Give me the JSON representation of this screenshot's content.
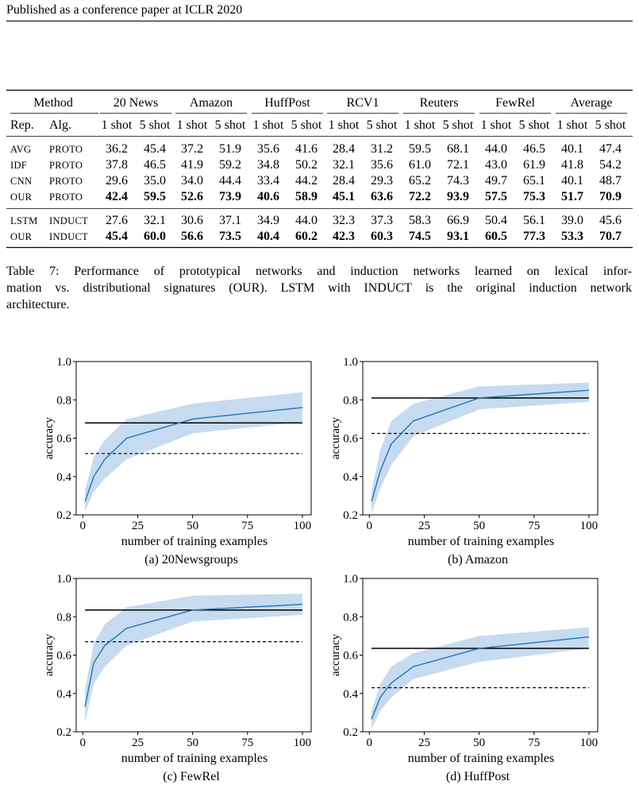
{
  "header": {
    "text": "Published as a conference paper at ICLR 2020"
  },
  "table": {
    "col_method": "Method",
    "col_rep": "Rep.",
    "col_alg": "Alg.",
    "datasets": [
      "20 News",
      "Amazon",
      "HuffPost",
      "RCV1",
      "Reuters",
      "FewRel",
      "Average"
    ],
    "shot_labels": [
      "1 shot",
      "5 shot"
    ],
    "group1": [
      {
        "rep": "AVG",
        "alg": "PROTO",
        "values": [
          "36.2",
          "45.4",
          "37.2",
          "51.9",
          "35.6",
          "41.6",
          "28.4",
          "31.2",
          "59.5",
          "68.1",
          "44.0",
          "46.5",
          "40.1",
          "47.4"
        ],
        "bold": false
      },
      {
        "rep": "IDF",
        "alg": "PROTO",
        "values": [
          "37.8",
          "46.5",
          "41.9",
          "59.2",
          "34.8",
          "50.2",
          "32.1",
          "35.6",
          "61.0",
          "72.1",
          "43.0",
          "61.9",
          "41.8",
          "54.2"
        ],
        "bold": false
      },
      {
        "rep": "CNN",
        "alg": "PROTO",
        "values": [
          "29.6",
          "35.0",
          "34.0",
          "44.4",
          "33.4",
          "44.2",
          "28.4",
          "29.3",
          "65.2",
          "74.3",
          "49.7",
          "65.1",
          "40.1",
          "48.7"
        ],
        "bold": false
      },
      {
        "rep": "OUR",
        "alg": "PROTO",
        "values": [
          "42.4",
          "59.5",
          "52.6",
          "73.9",
          "40.6",
          "58.9",
          "45.1",
          "63.6",
          "72.2",
          "93.9",
          "57.5",
          "75.3",
          "51.7",
          "70.9"
        ],
        "bold": true
      }
    ],
    "group2": [
      {
        "rep": "LSTM",
        "alg": "INDUCT",
        "values": [
          "27.6",
          "32.1",
          "30.6",
          "37.1",
          "34.9",
          "44.0",
          "32.3",
          "37.3",
          "58.3",
          "66.9",
          "50.4",
          "56.1",
          "39.0",
          "45.6"
        ],
        "bold": false
      },
      {
        "rep": "OUR",
        "alg": "INDUCT",
        "values": [
          "45.4",
          "60.0",
          "56.6",
          "73.5",
          "40.4",
          "60.2",
          "42.3",
          "60.3",
          "74.5",
          "93.1",
          "60.5",
          "77.3",
          "53.3",
          "70.7"
        ],
        "bold": true
      }
    ]
  },
  "caption": {
    "label": "Table 7:",
    "line1": "Performance of prototypical networks and induction networks learned on lexical infor-",
    "line2_a": "mation vs. distributional signatures (",
    "line2_our": "OUR",
    "line2_b": ").",
    "line2_lstm": "LSTM",
    "line2_c": " with ",
    "line2_induct": "INDUCT",
    "line2_d": " is the original induction network",
    "line3": "architecture."
  },
  "figure": {
    "ylabel": "accuracy",
    "xlabel": "number of training examples",
    "x_ticks": [
      "0",
      "25",
      "50",
      "75",
      "100"
    ],
    "y_ticks": [
      "0.2",
      "0.4",
      "0.6",
      "0.8",
      "1.0"
    ]
  },
  "chart_data": [
    {
      "type": "line",
      "caption": "(a) 20Newsgroups",
      "xlabel": "number of training examples",
      "ylabel": "accuracy",
      "xlim": [
        -3,
        104
      ],
      "ylim": [
        0.2,
        1.0
      ],
      "grid": false,
      "x": [
        1,
        5,
        10,
        20,
        50,
        100
      ],
      "mean": [
        0.27,
        0.4,
        0.49,
        0.6,
        0.7,
        0.76
      ],
      "lower": [
        0.22,
        0.32,
        0.39,
        0.49,
        0.625,
        0.685
      ],
      "upper": [
        0.33,
        0.5,
        0.59,
        0.7,
        0.78,
        0.84
      ],
      "solid_line": 0.68,
      "dashed_line": 0.52,
      "colors": {
        "line": "#1f77b4",
        "band": "#c6dbef",
        "ref": "#000000"
      }
    },
    {
      "type": "line",
      "caption": "(b) Amazon",
      "xlabel": "number of training examples",
      "ylabel": "accuracy",
      "xlim": [
        -3,
        104
      ],
      "ylim": [
        0.2,
        1.0
      ],
      "grid": false,
      "x": [
        1,
        5,
        10,
        20,
        50,
        100
      ],
      "mean": [
        0.27,
        0.43,
        0.57,
        0.69,
        0.81,
        0.85
      ],
      "lower": [
        0.21,
        0.34,
        0.46,
        0.61,
        0.75,
        0.79
      ],
      "upper": [
        0.33,
        0.54,
        0.69,
        0.78,
        0.87,
        0.89
      ],
      "solid_line": 0.81,
      "dashed_line": 0.625,
      "colors": {
        "line": "#1f77b4",
        "band": "#c6dbef",
        "ref": "#000000"
      }
    },
    {
      "type": "line",
      "caption": "(c) FewRel",
      "xlabel": "number of training examples",
      "ylabel": "accuracy",
      "xlim": [
        -3,
        104
      ],
      "ylim": [
        0.2,
        1.0
      ],
      "grid": false,
      "x": [
        1,
        5,
        10,
        20,
        50,
        100
      ],
      "mean": [
        0.33,
        0.56,
        0.65,
        0.74,
        0.835,
        0.865
      ],
      "lower": [
        0.25,
        0.45,
        0.54,
        0.65,
        0.775,
        0.81
      ],
      "upper": [
        0.42,
        0.66,
        0.76,
        0.85,
        0.91,
        0.92
      ],
      "solid_line": 0.835,
      "dashed_line": 0.67,
      "colors": {
        "line": "#1f77b4",
        "band": "#c6dbef",
        "ref": "#000000"
      }
    },
    {
      "type": "line",
      "caption": "(d) HuffPost",
      "xlabel": "number of training examples",
      "ylabel": "accuracy",
      "xlim": [
        -3,
        104
      ],
      "ylim": [
        0.2,
        1.0
      ],
      "grid": false,
      "x": [
        1,
        5,
        10,
        20,
        50,
        100
      ],
      "mean": [
        0.265,
        0.38,
        0.455,
        0.54,
        0.635,
        0.695
      ],
      "lower": [
        0.215,
        0.31,
        0.38,
        0.475,
        0.565,
        0.635
      ],
      "upper": [
        0.31,
        0.45,
        0.54,
        0.61,
        0.7,
        0.745
      ],
      "solid_line": 0.635,
      "dashed_line": 0.43,
      "colors": {
        "line": "#1f77b4",
        "band": "#c6dbef",
        "ref": "#000000"
      }
    }
  ]
}
